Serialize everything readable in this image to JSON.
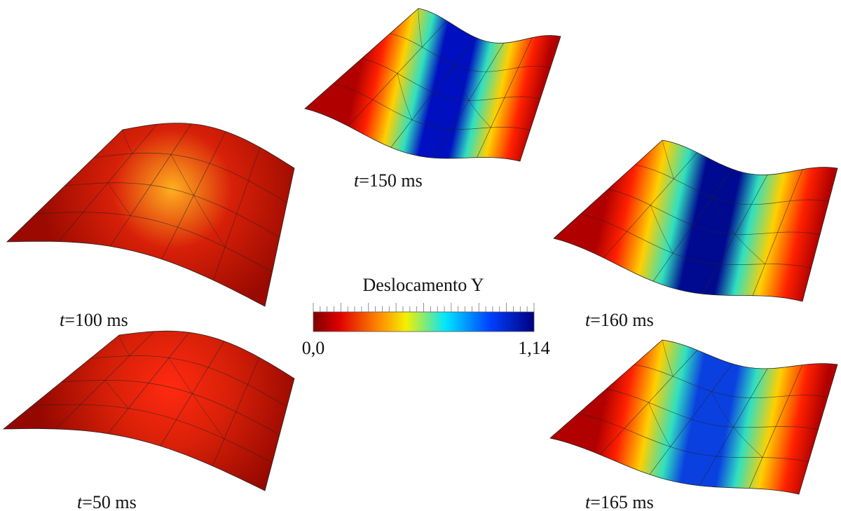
{
  "panels": [
    {
      "time_var": "t",
      "time_text": "=150 ms"
    },
    {
      "time_var": "t",
      "time_text": "=100 ms"
    },
    {
      "time_var": "t",
      "time_text": "=160 ms"
    },
    {
      "time_var": "t",
      "time_text": "=50 ms"
    },
    {
      "time_var": "t",
      "time_text": "=165 ms"
    }
  ],
  "colorbar": {
    "title": "Deslocamento Y",
    "min_label": "0,0",
    "max_label": "1,14"
  }
}
